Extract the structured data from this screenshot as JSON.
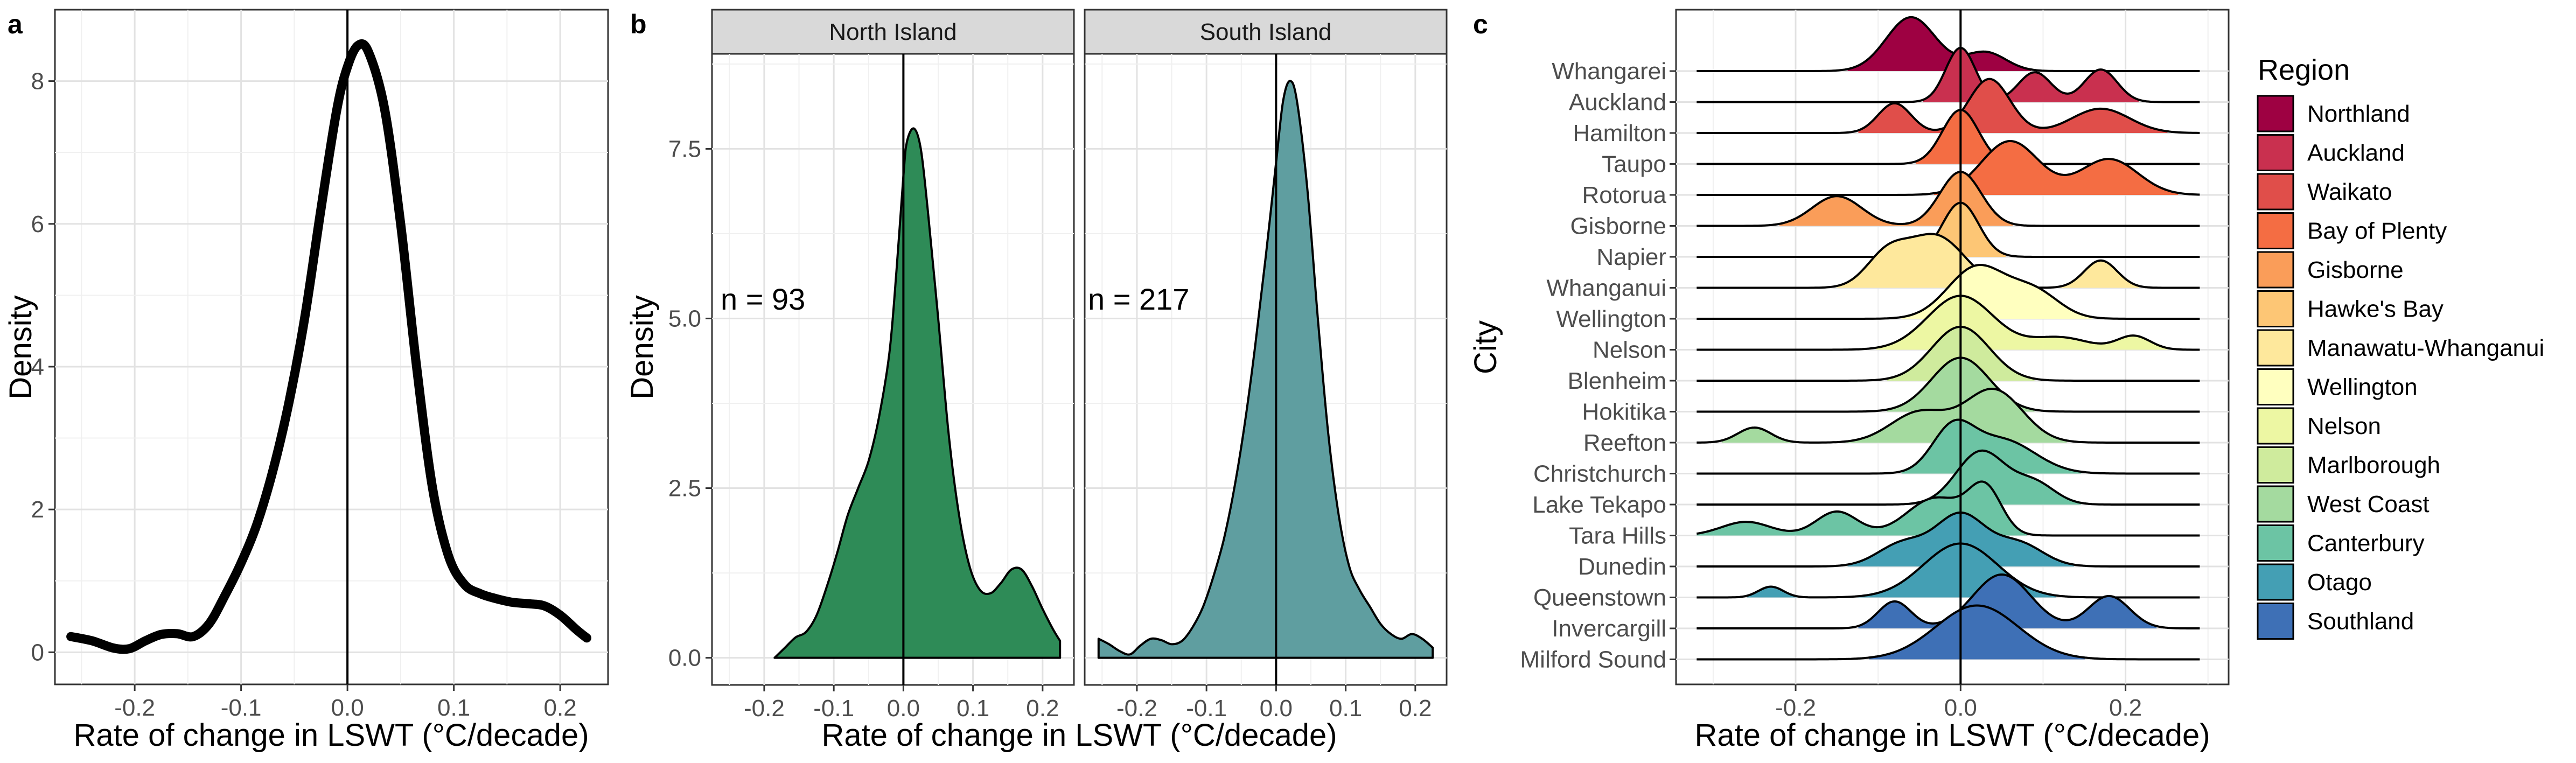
{
  "panel_tags": {
    "a": "a",
    "b": "b",
    "c": "c"
  },
  "chart_data": [
    {
      "panel": "a",
      "type": "line",
      "xlabel": "Rate of change in LSWT (°C/decade)",
      "ylabel": "Density",
      "xlim": [
        -0.275,
        0.245
      ],
      "ylim": [
        -0.45,
        9.0
      ],
      "xticks": [
        -0.2,
        -0.1,
        0.0,
        0.1,
        0.2
      ],
      "xtick_labels": [
        "-0.2",
        "-0.1",
        "0.0",
        "0.1",
        "0.2"
      ],
      "yticks": [
        0,
        2,
        4,
        6,
        8
      ],
      "ytick_labels": [
        "0",
        "2",
        "4",
        "6",
        "8"
      ],
      "vline": 0,
      "grid": true,
      "series": [
        {
          "x": [
            -0.26,
            -0.24,
            -0.22,
            -0.205,
            -0.19,
            -0.175,
            -0.16,
            -0.145,
            -0.13,
            -0.115,
            -0.1,
            -0.085,
            -0.07,
            -0.055,
            -0.04,
            -0.025,
            -0.01,
            0.0,
            0.01,
            0.02,
            0.035,
            0.05,
            0.065,
            0.08,
            0.095,
            0.11,
            0.125,
            0.14,
            0.155,
            0.17,
            0.185,
            0.2,
            0.215,
            0.225
          ],
          "y": [
            0.22,
            0.16,
            0.06,
            0.05,
            0.16,
            0.25,
            0.26,
            0.22,
            0.4,
            0.8,
            1.25,
            1.8,
            2.55,
            3.5,
            4.7,
            6.2,
            7.6,
            8.2,
            8.5,
            8.4,
            7.6,
            6.0,
            4.0,
            2.3,
            1.35,
            0.95,
            0.82,
            0.75,
            0.7,
            0.68,
            0.65,
            0.52,
            0.32,
            0.2
          ]
        }
      ]
    },
    {
      "panel": "b",
      "type": "area",
      "xlabel": "Rate of change in LSWT (°C/decade)",
      "ylabel": "Density",
      "xlim": [
        -0.275,
        0.245
      ],
      "ylim": [
        -0.4,
        8.9
      ],
      "xticks": [
        -0.2,
        -0.1,
        0.0,
        0.1,
        0.2
      ],
      "xtick_labels": [
        "-0.2",
        "-0.1",
        "0.0",
        "0.1",
        "0.2"
      ],
      "yticks": [
        0,
        2.5,
        5.0,
        7.5
      ],
      "ytick_labels": [
        "0.0",
        "2.5",
        "5.0",
        "7.5"
      ],
      "vline": 0,
      "grid": true,
      "facets": [
        {
          "title": "North Island",
          "annotation": "n = 93",
          "color": "#2e8b57",
          "x": [
            -0.185,
            -0.17,
            -0.155,
            -0.14,
            -0.125,
            -0.11,
            -0.095,
            -0.08,
            -0.065,
            -0.05,
            -0.035,
            -0.02,
            -0.01,
            0.0,
            0.005,
            0.015,
            0.025,
            0.035,
            0.05,
            0.065,
            0.08,
            0.095,
            0.11,
            0.125,
            0.14,
            0.155,
            0.17,
            0.185,
            0.2,
            0.215,
            0.225
          ],
          "y": [
            0.0,
            0.15,
            0.3,
            0.38,
            0.62,
            1.05,
            1.55,
            2.1,
            2.5,
            2.9,
            3.55,
            4.5,
            5.7,
            7.1,
            7.6,
            7.8,
            7.5,
            6.6,
            5.0,
            3.3,
            2.1,
            1.35,
            1.0,
            0.95,
            1.1,
            1.3,
            1.3,
            1.05,
            0.72,
            0.42,
            0.25
          ]
        },
        {
          "title": "South Island",
          "annotation": "n = 217",
          "color": "#5f9ea0",
          "x": [
            -0.255,
            -0.24,
            -0.225,
            -0.21,
            -0.195,
            -0.18,
            -0.165,
            -0.15,
            -0.135,
            -0.12,
            -0.105,
            -0.09,
            -0.075,
            -0.06,
            -0.045,
            -0.03,
            -0.015,
            0.0,
            0.01,
            0.02,
            0.03,
            0.045,
            0.06,
            0.075,
            0.09,
            0.105,
            0.12,
            0.135,
            0.15,
            0.165,
            0.18,
            0.195,
            0.21,
            0.225
          ],
          "y": [
            0.28,
            0.2,
            0.1,
            0.05,
            0.18,
            0.28,
            0.26,
            0.2,
            0.25,
            0.45,
            0.75,
            1.2,
            1.75,
            2.5,
            3.45,
            4.6,
            5.9,
            7.3,
            8.2,
            8.5,
            8.2,
            6.9,
            5.0,
            3.3,
            2.1,
            1.35,
            1.0,
            0.75,
            0.5,
            0.35,
            0.28,
            0.35,
            0.28,
            0.15
          ]
        }
      ]
    },
    {
      "panel": "c",
      "type": "area",
      "xlabel": "Rate of change in LSWT (°C/decade)",
      "ylabel": "City",
      "xlim": [
        -0.345,
        0.325
      ],
      "xticks": [
        -0.2,
        0.0,
        0.2
      ],
      "xtick_labels": [
        "-0.2",
        "0.0",
        "0.2"
      ],
      "vline": 0,
      "grid": true,
      "legend_title": "Region",
      "legend_placement": "right",
      "regions": [
        {
          "name": "Northland",
          "color": "#9e0142"
        },
        {
          "name": "Auckland",
          "color": "#c9304f"
        },
        {
          "name": "Waikato",
          "color": "#e04e4a"
        },
        {
          "name": "Bay of Plenty",
          "color": "#f46d43"
        },
        {
          "name": "Gisborne",
          "color": "#fa9d59"
        },
        {
          "name": "Hawke's Bay",
          "color": "#fdc675"
        },
        {
          "name": "Manawatu-Whanganui",
          "color": "#fee89c"
        },
        {
          "name": "Wellington",
          "color": "#ffffbf"
        },
        {
          "name": "Nelson",
          "color": "#edf7a3"
        },
        {
          "name": "Marlborough",
          "color": "#cfeb9d"
        },
        {
          "name": "West Coast",
          "color": "#a4da9f"
        },
        {
          "name": "Canterbury",
          "color": "#6cc4a4"
        },
        {
          "name": "Otago",
          "color": "#449fb4"
        },
        {
          "name": "Southland",
          "color": "#3e70b6"
        }
      ],
      "cities": [
        {
          "name": "Whangarei",
          "region": 0,
          "peaks": [
            [
              -0.06,
              0.03,
              1.0
            ],
            [
              0.03,
              0.025,
              0.35
            ]
          ]
        },
        {
          "name": "Auckland",
          "region": 1,
          "peaks": [
            [
              0.0,
              0.018,
              1.0
            ],
            [
              0.09,
              0.02,
              0.55
            ],
            [
              0.17,
              0.02,
              0.6
            ]
          ]
        },
        {
          "name": "Hamilton",
          "region": 2,
          "peaks": [
            [
              -0.08,
              0.02,
              0.55
            ],
            [
              0.035,
              0.025,
              1.0
            ],
            [
              0.17,
              0.035,
              0.45
            ]
          ]
        },
        {
          "name": "Taupo",
          "region": 3,
          "peaks": [
            [
              0.0,
              0.022,
              1.0
            ]
          ]
        },
        {
          "name": "Rotorua",
          "region": 3,
          "peaks": [
            [
              0.06,
              0.035,
              0.9
            ],
            [
              0.18,
              0.035,
              0.6
            ]
          ]
        },
        {
          "name": "Gisborne",
          "region": 4,
          "peaks": [
            [
              -0.15,
              0.03,
              0.55
            ],
            [
              0.0,
              0.025,
              1.0
            ]
          ]
        },
        {
          "name": "Napier",
          "region": 5,
          "peaks": [
            [
              0.0,
              0.022,
              1.2
            ]
          ]
        },
        {
          "name": "Whanganui",
          "region": 6,
          "peaks": [
            [
              -0.09,
              0.025,
              0.5
            ],
            [
              -0.03,
              0.035,
              0.85
            ],
            [
              0.17,
              0.02,
              0.45
            ]
          ]
        },
        {
          "name": "Wellington",
          "region": 7,
          "peaks": [
            [
              0.02,
              0.035,
              1.0
            ],
            [
              0.09,
              0.03,
              0.5
            ]
          ]
        },
        {
          "name": "Nelson",
          "region": 8,
          "peaks": [
            [
              0.0,
              0.04,
              1.1
            ],
            [
              0.12,
              0.035,
              0.25
            ],
            [
              0.21,
              0.02,
              0.28
            ]
          ]
        },
        {
          "name": "Blenheim",
          "region": 9,
          "peaks": [
            [
              0.0,
              0.035,
              1.2
            ]
          ]
        },
        {
          "name": "Hokitika",
          "region": 10,
          "peaks": [
            [
              0.0,
              0.035,
              1.1
            ]
          ]
        },
        {
          "name": "Reefton",
          "region": 10,
          "peaks": [
            [
              -0.25,
              0.02,
              0.2
            ],
            [
              -0.05,
              0.035,
              0.4
            ],
            [
              0.04,
              0.035,
              0.7
            ]
          ]
        },
        {
          "name": "Christchurch",
          "region": 11,
          "peaks": [
            [
              -0.01,
              0.025,
              0.8
            ],
            [
              0.05,
              0.04,
              0.65
            ]
          ]
        },
        {
          "name": "Lake Tekapo",
          "region": 11,
          "peaks": [
            [
              0.025,
              0.03,
              0.9
            ],
            [
              0.09,
              0.025,
              0.35
            ]
          ]
        },
        {
          "name": "Tara Hills",
          "region": 11,
          "peaks": [
            [
              -0.26,
              0.03,
              0.2
            ],
            [
              -0.15,
              0.025,
              0.35
            ],
            [
              -0.03,
              0.035,
              0.55
            ],
            [
              0.03,
              0.02,
              0.65
            ]
          ]
        },
        {
          "name": "Dunedin",
          "region": 12,
          "peaks": [
            [
              -0.07,
              0.03,
              0.45
            ],
            [
              0.0,
              0.03,
              1.0
            ],
            [
              0.07,
              0.03,
              0.45
            ]
          ]
        },
        {
          "name": "Queenstown",
          "region": 12,
          "peaks": [
            [
              -0.23,
              0.015,
              0.2
            ],
            [
              0.0,
              0.045,
              1.0
            ]
          ]
        },
        {
          "name": "Invercargill",
          "region": 13,
          "peaks": [
            [
              -0.08,
              0.02,
              0.5
            ],
            [
              0.05,
              0.035,
              1.0
            ],
            [
              0.18,
              0.025,
              0.6
            ]
          ]
        },
        {
          "name": "Milford Sound",
          "region": 13,
          "peaks": [
            [
              0.02,
              0.05,
              1.0
            ]
          ]
        }
      ]
    }
  ]
}
